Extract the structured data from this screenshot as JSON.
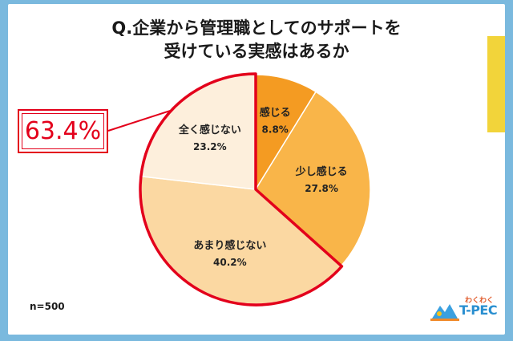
{
  "title": {
    "line1": "Q.企業から管理職としてのサポートを",
    "line2": "受けている実感はあるか"
  },
  "callout": {
    "value": "63.4%"
  },
  "sample_size": "n=500",
  "logo": {
    "sub": "わくわく",
    "main": "T-PEC"
  },
  "colors": {
    "slice_feel": "#f49b22",
    "slice_little": "#f9b549",
    "slice_hardly": "#fbd8a2",
    "slice_not_at_all": "#fdefdc",
    "highlight": "#e3001b",
    "background": "#7ab9de",
    "stripe": "#f2d43a"
  },
  "chart_data": {
    "type": "pie",
    "title": "Q.企業から管理職としてのサポートを受けている実感はあるか",
    "start": "12 o'clock",
    "direction": "clockwise",
    "slices": [
      {
        "label": "感じる",
        "value": 8.8,
        "display": "8.8%",
        "color": "#f49b22"
      },
      {
        "label": "少し感じる",
        "value": 27.8,
        "display": "27.8%",
        "color": "#f9b549"
      },
      {
        "label": "あまり感じない",
        "value": 40.2,
        "display": "40.2%",
        "color": "#fbd8a2"
      },
      {
        "label": "全く感じない",
        "value": 23.2,
        "display": "23.2%",
        "color": "#fdefdc"
      }
    ],
    "highlight": {
      "slices": [
        "あまり感じない",
        "全く感じない"
      ],
      "total": "63.4%"
    }
  }
}
